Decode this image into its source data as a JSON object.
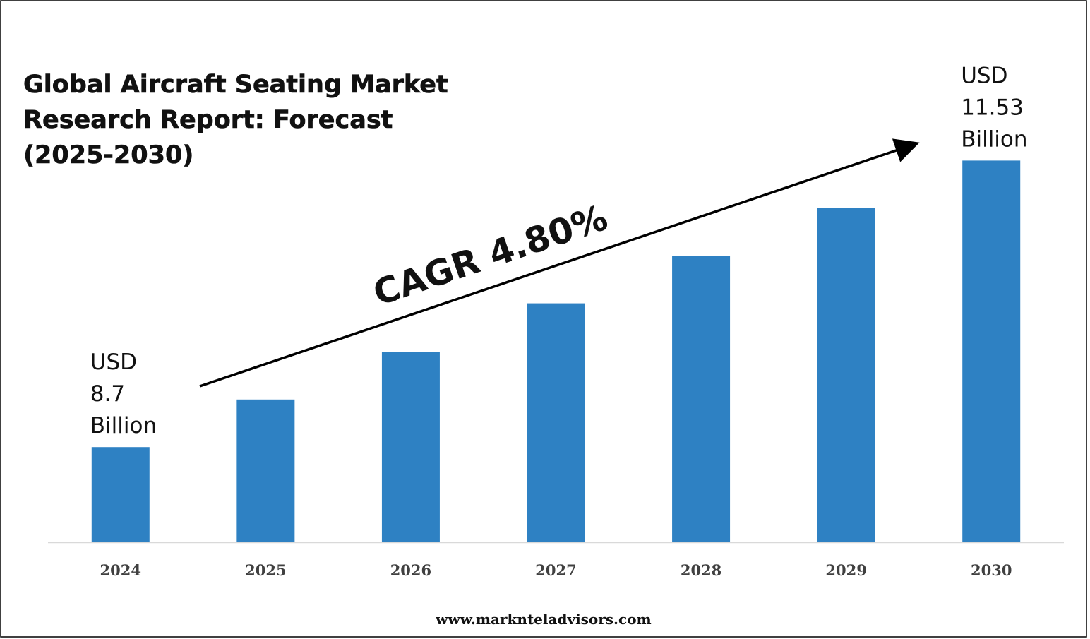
{
  "chart_data": {
    "type": "bar",
    "title": [
      "Global Aircraft Seating Market",
      "Research Report: Forecast",
      "(2025-2030)"
    ],
    "categories": [
      "2024",
      "2025",
      "2026",
      "2027",
      "2028",
      "2029",
      "2030"
    ],
    "values": [
      8.7,
      9.17,
      9.64,
      10.12,
      10.59,
      11.06,
      11.53
    ],
    "value_labels": [
      [
        "USD",
        "8.7",
        "Billion"
      ],
      null,
      null,
      null,
      null,
      null,
      [
        "USD",
        "11.53",
        "Billion"
      ]
    ],
    "color": "#2e81c3",
    "ylim": [
      7.76,
      12.0
    ],
    "annotation": "CAGR 4.80%",
    "source": "www.marknteladvisors.com"
  }
}
